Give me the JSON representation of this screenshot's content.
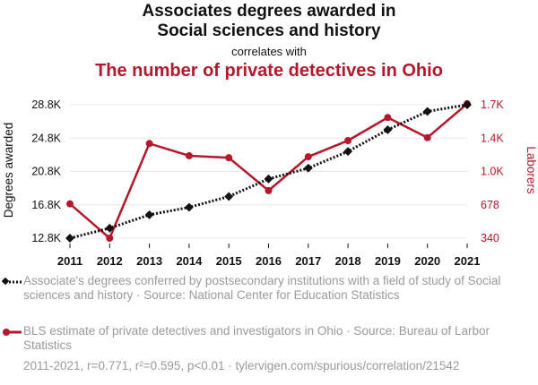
{
  "header": {
    "title_line1": "Associates degrees awarded in",
    "title_line2": "Social sciences and history",
    "correlates": "correlates with",
    "subtitle": "The number of private detectives in Ohio"
  },
  "legend": {
    "series1": "Associate's degrees conferred by postsecondary institutions with a field of study of Social sciences and history · Source: National Center for Education Statistics",
    "series2": "BLS estimate of private detectives and investigators in Ohio · Source: Bureau of Larbor Statistics"
  },
  "footer": "2011-2021, r=0.771, r²=0.595, p<0.01 · tylervigen.com/spurious/correlation/21542",
  "colors": {
    "series1": "#111111",
    "series2": "#b5172b",
    "grid": "#e8e8e8"
  },
  "chart_data": {
    "type": "line",
    "categories": [
      "2011",
      "2012",
      "2013",
      "2014",
      "2015",
      "2016",
      "2017",
      "2018",
      "2019",
      "2020",
      "2021"
    ],
    "ylabel": "Degrees awarded",
    "y2label": "Laborers",
    "yticks": [
      "12.8K",
      "16.8K",
      "20.8K",
      "24.8K",
      "28.8K"
    ],
    "y2ticks": [
      "340",
      "678",
      "1.0K",
      "1.4K",
      "1.7K"
    ],
    "ylim": [
      12800,
      28800
    ],
    "y2lim": [
      340,
      1700
    ],
    "grid": true,
    "series": [
      {
        "name": "Associate's degrees conferred by postsecondary institutions with a field of study of Social sciences and history",
        "axis": "left",
        "style": "dotted",
        "marker": "diamond",
        "values": [
          12800,
          14000,
          15600,
          16500,
          17800,
          19900,
          21200,
          23200,
          25800,
          28000,
          28800
        ]
      },
      {
        "name": "BLS estimate of private detectives and investigators in Ohio",
        "axis": "right",
        "style": "solid",
        "marker": "circle",
        "values": [
          690,
          340,
          1305,
          1180,
          1160,
          825,
          1170,
          1335,
          1570,
          1365,
          1710
        ]
      }
    ]
  }
}
